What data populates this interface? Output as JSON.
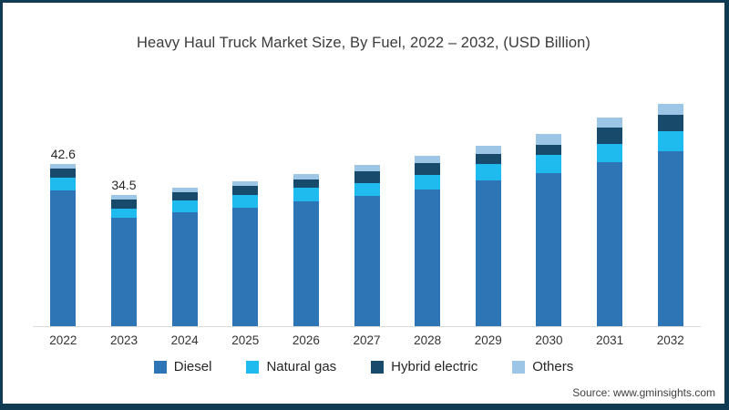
{
  "chart_data": {
    "type": "bar",
    "stacked": true,
    "title": "Heavy Haul Truck Market Size, By Fuel, 2022 – 2032, (USD Billion)",
    "xlabel": "",
    "ylabel": "",
    "grid": false,
    "legend_position": "bottom",
    "axis_line_color": "#d9d9d9",
    "categories": [
      "2022",
      "2023",
      "2024",
      "2025",
      "2026",
      "2027",
      "2028",
      "2029",
      "2030",
      "2031",
      "2032"
    ],
    "series": [
      {
        "name": "Diesel",
        "color": "#2E75B6",
        "values": [
          35.6,
          28.5,
          29.8,
          31.0,
          32.7,
          34.2,
          35.9,
          38.3,
          40.2,
          43.1,
          46.0
        ]
      },
      {
        "name": "Natural gas",
        "color": "#1FBBEE",
        "values": [
          3.4,
          2.4,
          3.1,
          3.4,
          3.6,
          3.4,
          3.9,
          4.3,
          4.8,
          4.8,
          5.3
        ]
      },
      {
        "name": "Hybrid electric",
        "color": "#174A6B",
        "values": [
          2.4,
          2.4,
          2.2,
          2.4,
          2.2,
          3.1,
          3.1,
          2.6,
          2.6,
          4.3,
          4.3
        ]
      },
      {
        "name": "Others",
        "color": "#9DC6E6",
        "values": [
          1.2,
          1.2,
          1.2,
          1.2,
          1.4,
          1.7,
          1.9,
          2.2,
          2.9,
          2.6,
          2.9
        ]
      }
    ],
    "totals": [
      42.6,
      34.5,
      36.3,
      38.0,
      39.9,
      42.4,
      44.8,
      47.4,
      50.5,
      54.8,
      58.5
    ],
    "bar_labels": [
      "42.6",
      "34.5",
      "",
      "",
      "",
      "",
      "",
      "",
      "",
      "",
      ""
    ]
  },
  "frame": {
    "border_color": "#113B53",
    "background": "#ffffff"
  },
  "source": "Source: www.gminsights.com"
}
